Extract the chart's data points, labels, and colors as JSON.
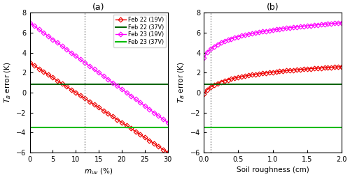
{
  "panel_a": {
    "title": "(a)",
    "xlabel": "$m_{uv}$ (%)",
    "ylabel": "$T_B$ error (K)",
    "xlim": [
      0,
      30
    ],
    "ylim": [
      -6,
      8
    ],
    "yticks": [
      -6,
      -4,
      -2,
      0,
      2,
      4,
      6,
      8
    ],
    "xticks": [
      0,
      5,
      10,
      15,
      20,
      25,
      30
    ],
    "vline_x": 12,
    "feb22_19v_y0": 3.0,
    "feb22_19v_y1": -6.0,
    "feb23_19v_y0": 7.0,
    "feb23_19v_y1": -3.0,
    "feb22_37v_const": 0.85,
    "feb23_37v_const": -3.5,
    "n_points_a": 31
  },
  "panel_b": {
    "title": "(b)",
    "xlabel": "Soil roughness (cm)",
    "ylabel": "$T_B$ error (K)",
    "xlim": [
      0,
      2
    ],
    "ylim": [
      -6,
      8
    ],
    "yticks": [
      -6,
      -4,
      -2,
      0,
      2,
      4,
      6,
      8
    ],
    "xticks": [
      0,
      0.5,
      1.0,
      1.5,
      2.0
    ],
    "vline_x": 0.1,
    "feb22_37v_const": 0.85,
    "feb23_37v_const": -3.5,
    "n_points_b": 41
  },
  "colors": {
    "feb22_19v": "#ee0000",
    "feb22_37v": "#006400",
    "feb23_19v": "#ff00ff",
    "feb23_37v": "#00bb00"
  },
  "legend_labels": [
    "Feb 22 (19V)",
    "Feb 22 (37V)",
    "Feb 23 (19V)",
    "Feb 23 (37V)"
  ],
  "markersize": 3.5,
  "linewidth": 1.0,
  "figsize": [
    5.0,
    2.57
  ],
  "dpi": 100
}
